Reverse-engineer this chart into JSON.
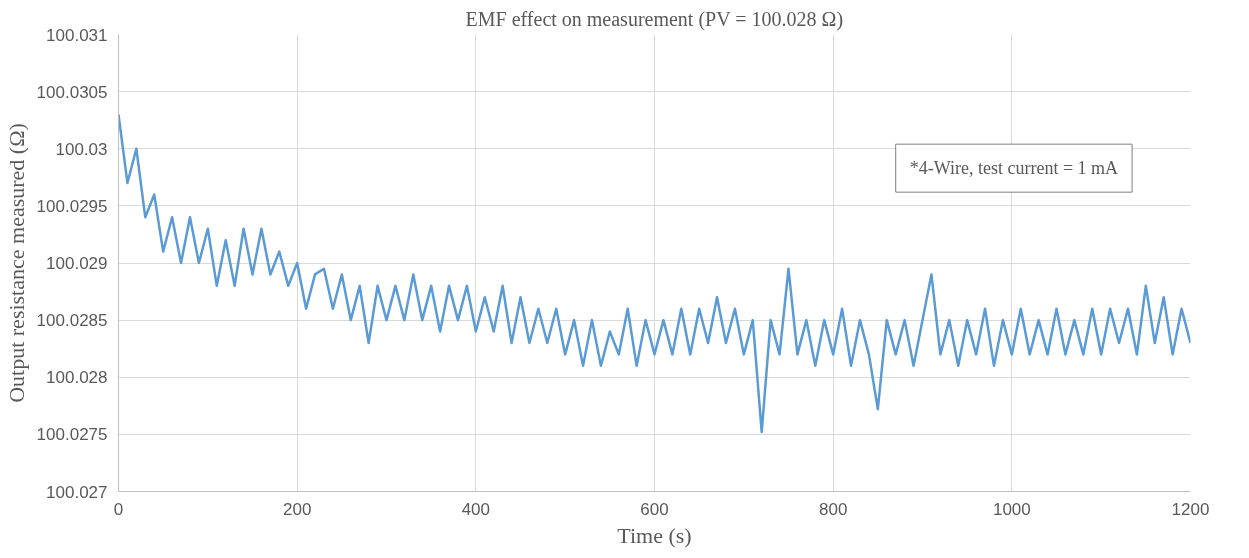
{
  "chart_data": {
    "type": "line",
    "title": "EMF effect on measurement (PV = 100.028 Ω)",
    "xlabel": "Time (s)",
    "ylabel": "Output resistance measured (Ω)",
    "annotations": [
      "*4-Wire, test current = 1 mA"
    ],
    "x": [
      0,
      10,
      20,
      30,
      40,
      50,
      60,
      70,
      80,
      90,
      100,
      110,
      120,
      130,
      140,
      150,
      160,
      170,
      180,
      190,
      200,
      210,
      220,
      230,
      240,
      250,
      260,
      270,
      280,
      290,
      300,
      310,
      320,
      330,
      340,
      350,
      360,
      370,
      380,
      390,
      400,
      410,
      420,
      430,
      440,
      450,
      460,
      470,
      480,
      490,
      500,
      510,
      520,
      530,
      540,
      550,
      560,
      570,
      580,
      590,
      600,
      610,
      620,
      630,
      640,
      650,
      660,
      670,
      680,
      690,
      700,
      710,
      720,
      730,
      740,
      750,
      760,
      770,
      780,
      790,
      800,
      810,
      820,
      830,
      840,
      850,
      860,
      870,
      880,
      890,
      900,
      910,
      920,
      930,
      940,
      950,
      960,
      970,
      980,
      990,
      1000,
      1010,
      1020,
      1030,
      1040,
      1050,
      1060,
      1070,
      1080,
      1090,
      1100,
      1110,
      1120,
      1130,
      1140,
      1150,
      1160,
      1170,
      1180,
      1190,
      1200
    ],
    "series": [
      {
        "color": "#5b9bd5",
        "values": [
          100.0303,
          100.0297,
          100.03,
          100.0294,
          100.0296,
          100.0291,
          100.0294,
          100.029,
          100.0294,
          100.029,
          100.0293,
          100.0288,
          100.0292,
          100.0288,
          100.0293,
          100.0289,
          100.0293,
          100.0289,
          100.0291,
          100.0288,
          100.029,
          100.0286,
          100.0289,
          100.02895,
          100.0286,
          100.0289,
          100.0285,
          100.0288,
          100.0283,
          100.0288,
          100.0285,
          100.0288,
          100.0285,
          100.0289,
          100.0285,
          100.0288,
          100.0284,
          100.0288,
          100.0285,
          100.0288,
          100.0284,
          100.0287,
          100.0284,
          100.0288,
          100.0283,
          100.0287,
          100.0283,
          100.0286,
          100.0283,
          100.0286,
          100.0282,
          100.0285,
          100.0281,
          100.0285,
          100.0281,
          100.0284,
          100.0282,
          100.0286,
          100.0281,
          100.0285,
          100.0282,
          100.0285,
          100.0282,
          100.0286,
          100.0282,
          100.0286,
          100.0283,
          100.0287,
          100.0283,
          100.0286,
          100.0282,
          100.0285,
          100.02752,
          100.0285,
          100.0282,
          100.02895,
          100.0282,
          100.0285,
          100.0281,
          100.0285,
          100.0282,
          100.0286,
          100.0281,
          100.0285,
          100.0282,
          100.02772,
          100.0285,
          100.0282,
          100.0285,
          100.0281,
          100.0285,
          100.0289,
          100.0282,
          100.0285,
          100.0281,
          100.0285,
          100.0282,
          100.0286,
          100.0281,
          100.0285,
          100.0282,
          100.0286,
          100.0282,
          100.0285,
          100.0282,
          100.0286,
          100.0282,
          100.0285,
          100.0282,
          100.0286,
          100.0282,
          100.0286,
          100.0283,
          100.0286,
          100.0282,
          100.0288,
          100.0283,
          100.0287,
          100.0282,
          100.0286,
          100.0283
        ]
      }
    ],
    "xlim": [
      0,
      1200
    ],
    "xticks": [
      0,
      200,
      400,
      600,
      800,
      1000,
      1200
    ],
    "ylim": [
      100.027,
      100.031
    ],
    "yticks": [
      100.027,
      100.0275,
      100.028,
      100.0285,
      100.029,
      100.0295,
      100.03,
      100.0305,
      100.031
    ],
    "grid": true,
    "marker": "none",
    "line_style": "solid"
  }
}
